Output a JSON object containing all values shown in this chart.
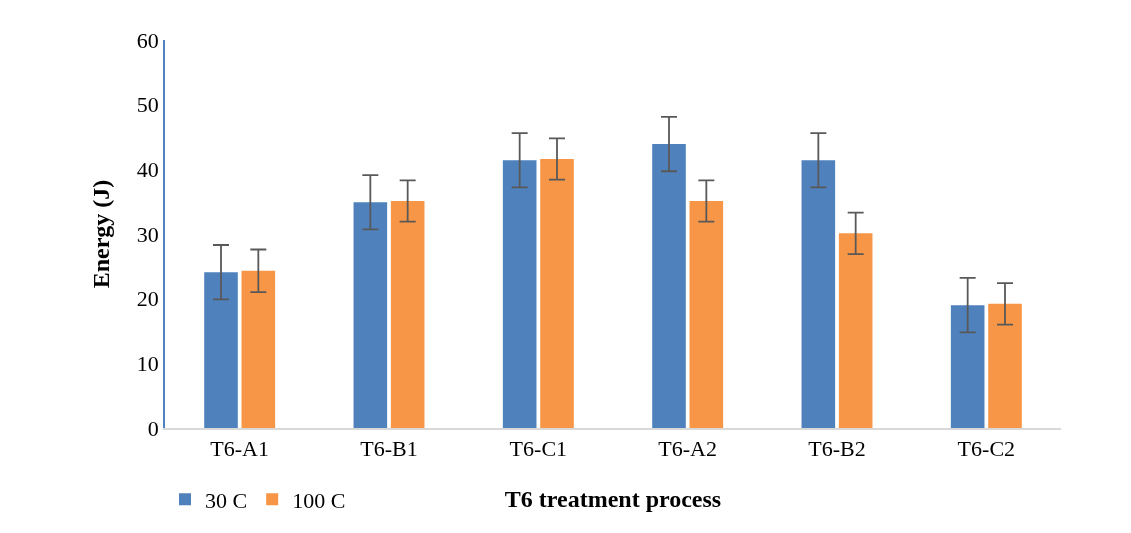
{
  "chart_data": {
    "type": "bar",
    "xlabel": "T6 treatment process",
    "ylabel": "Energy (J)",
    "categories": [
      "T6-A1",
      "T6-B1",
      "T6-C1",
      "T6-A2",
      "T6-B2",
      "T6-C2"
    ],
    "series": [
      {
        "name": "30 C",
        "color": "#4f81bd",
        "values": [
          24.1,
          34.9,
          41.4,
          43.9,
          41.4,
          19.0
        ],
        "errors": [
          4.2,
          4.2,
          4.2,
          4.2,
          4.2,
          4.2
        ]
      },
      {
        "name": "100 C",
        "color": "#f79646",
        "values": [
          24.3,
          35.1,
          41.6,
          35.1,
          30.1,
          19.2
        ],
        "errors": [
          3.3,
          3.2,
          3.2,
          3.2,
          3.2,
          3.2
        ]
      }
    ],
    "ylim": [
      0,
      60
    ],
    "yticks": [
      0,
      10,
      20,
      30,
      40,
      50,
      60
    ],
    "grid": false,
    "legend": "bottom left"
  }
}
